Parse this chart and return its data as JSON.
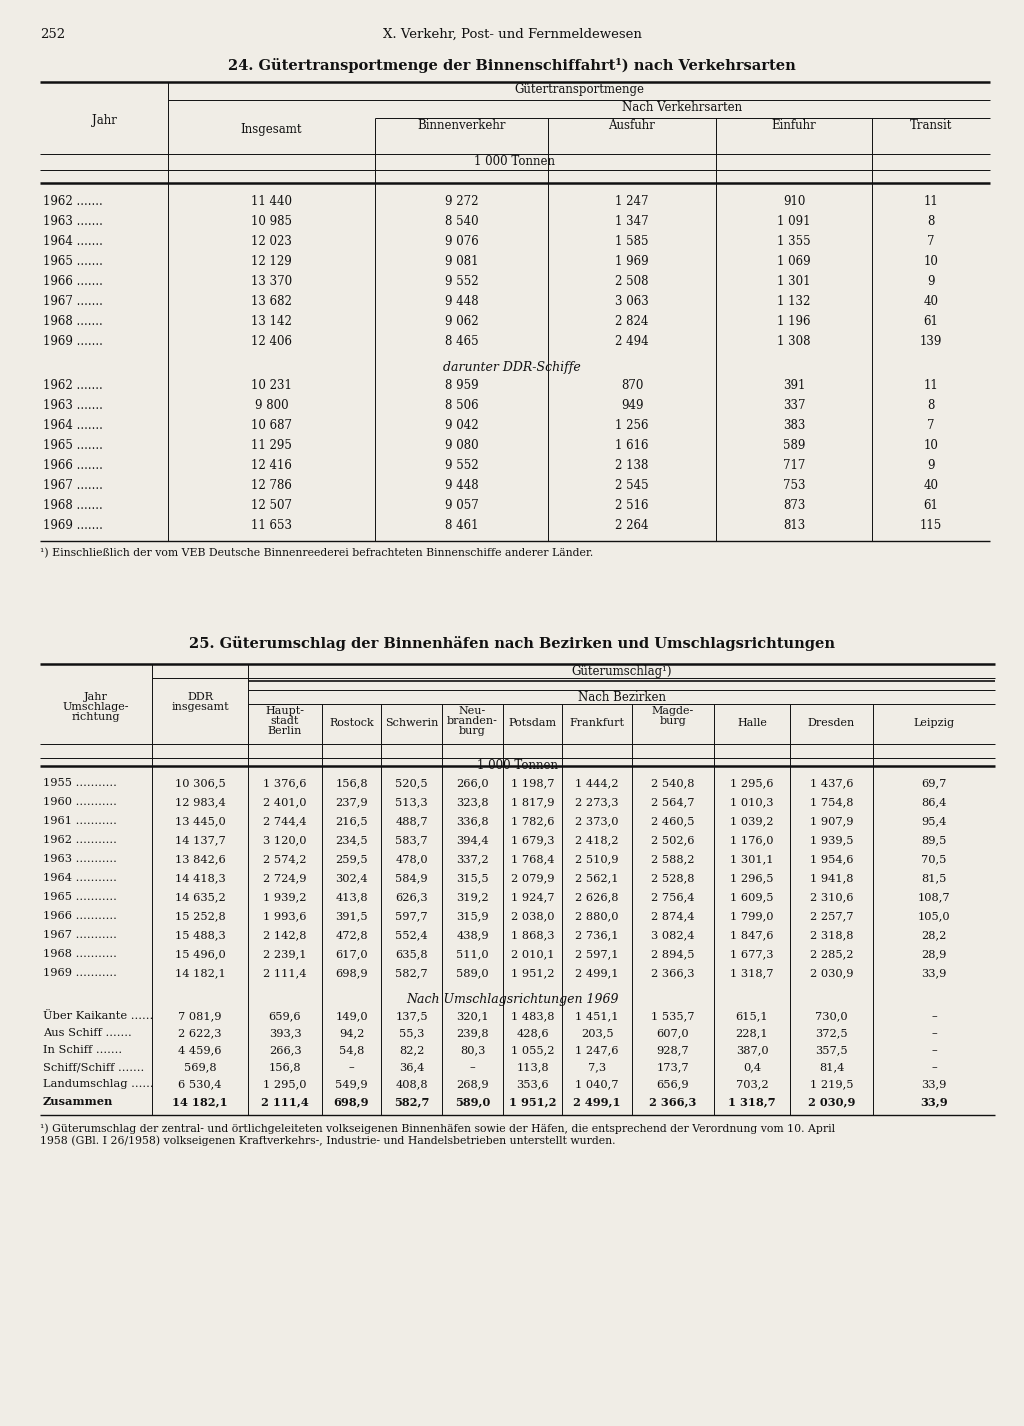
{
  "page_num": "252",
  "page_header": "X. Verkehr, Post- und Fernmeldewesen",
  "table1_title": "24. Gütertransportmenge der Binnenschiffahrt¹) nach Verkehrsarten",
  "table1_unit_row": "1 000 Tonnen",
  "table1_data": [
    [
      "1962 .......",
      "11 440",
      "9 272",
      "1 247",
      "910",
      "11"
    ],
    [
      "1963 .......",
      "10 985",
      "8 540",
      "1 347",
      "1 091",
      "8"
    ],
    [
      "1964 .......",
      "12 023",
      "9 076",
      "1 585",
      "1 355",
      "7"
    ],
    [
      "1965 .......",
      "12 129",
      "9 081",
      "1 969",
      "1 069",
      "10"
    ],
    [
      "1966 .......",
      "13 370",
      "9 552",
      "2 508",
      "1 301",
      "9"
    ],
    [
      "1967 .......",
      "13 682",
      "9 448",
      "3 063",
      "1 132",
      "40"
    ],
    [
      "1968 .......",
      "13 142",
      "9 062",
      "2 824",
      "1 196",
      "61"
    ],
    [
      "1969 .......",
      "12 406",
      "8 465",
      "2 494",
      "1 308",
      "139"
    ]
  ],
  "table1_section2_header": "darunter DDR-Schiffe",
  "table1_data2": [
    [
      "1962 .......",
      "10 231",
      "8 959",
      "870",
      "391",
      "11"
    ],
    [
      "1963 .......",
      "9 800",
      "8 506",
      "949",
      "337",
      "8"
    ],
    [
      "1964 .......",
      "10 687",
      "9 042",
      "1 256",
      "383",
      "7"
    ],
    [
      "1965 .......",
      "11 295",
      "9 080",
      "1 616",
      "589",
      "10"
    ],
    [
      "1966 .......",
      "12 416",
      "9 552",
      "2 138",
      "717",
      "9"
    ],
    [
      "1967 .......",
      "12 786",
      "9 448",
      "2 545",
      "753",
      "40"
    ],
    [
      "1968 .......",
      "12 507",
      "9 057",
      "2 516",
      "873",
      "61"
    ],
    [
      "1969 .......",
      "11 653",
      "8 461",
      "2 264",
      "813",
      "115"
    ]
  ],
  "table1_footnote": "¹) Einschließlich der vom VEB Deutsche Binnenreederei befrachteten Binnenschiffe anderer Länder.",
  "table2_title": "25. Güterumschlag der Binnenhäfen nach Bezirken und Umschlagsrichtungen",
  "table2_unit_row": "1 000 Tonnen",
  "table2_data": [
    [
      "1955 ...........",
      "10 306,5",
      "1 376,6",
      "156,8",
      "520,5",
      "266,0",
      "1 198,7",
      "1 444,2",
      "2 540,8",
      "1 295,6",
      "1 437,6",
      "69,7"
    ],
    [
      "1960 ...........",
      "12 983,4",
      "2 401,0",
      "237,9",
      "513,3",
      "323,8",
      "1 817,9",
      "2 273,3",
      "2 564,7",
      "1 010,3",
      "1 754,8",
      "86,4"
    ],
    [
      "1961 ...........",
      "13 445,0",
      "2 744,4",
      "216,5",
      "488,7",
      "336,8",
      "1 782,6",
      "2 373,0",
      "2 460,5",
      "1 039,2",
      "1 907,9",
      "95,4"
    ],
    [
      "1962 ...........",
      "14 137,7",
      "3 120,0",
      "234,5",
      "583,7",
      "394,4",
      "1 679,3",
      "2 418,2",
      "2 502,6",
      "1 176,0",
      "1 939,5",
      "89,5"
    ],
    [
      "1963 ...........",
      "13 842,6",
      "2 574,2",
      "259,5",
      "478,0",
      "337,2",
      "1 768,4",
      "2 510,9",
      "2 588,2",
      "1 301,1",
      "1 954,6",
      "70,5"
    ],
    [
      "1964 ...........",
      "14 418,3",
      "2 724,9",
      "302,4",
      "584,9",
      "315,5",
      "2 079,9",
      "2 562,1",
      "2 528,8",
      "1 296,5",
      "1 941,8",
      "81,5"
    ],
    [
      "1965 ...........",
      "14 635,2",
      "1 939,2",
      "413,8",
      "626,3",
      "319,2",
      "1 924,7",
      "2 626,8",
      "2 756,4",
      "1 609,5",
      "2 310,6",
      "108,7"
    ],
    [
      "1966 ...........",
      "15 252,8",
      "1 993,6",
      "391,5",
      "597,7",
      "315,9",
      "2 038,0",
      "2 880,0",
      "2 874,4",
      "1 799,0",
      "2 257,7",
      "105,0"
    ],
    [
      "1967 ...........",
      "15 488,3",
      "2 142,8",
      "472,8",
      "552,4",
      "438,9",
      "1 868,3",
      "2 736,1",
      "3 082,4",
      "1 847,6",
      "2 318,8",
      "28,2"
    ],
    [
      "1968 ...........",
      "15 496,0",
      "2 239,1",
      "617,0",
      "635,8",
      "511,0",
      "2 010,1",
      "2 597,1",
      "2 894,5",
      "1 677,3",
      "2 285,2",
      "28,9"
    ],
    [
      "1969 ...........",
      "14 182,1",
      "2 111,4",
      "698,9",
      "582,7",
      "589,0",
      "1 951,2",
      "2 499,1",
      "2 366,3",
      "1 318,7",
      "2 030,9",
      "33,9"
    ]
  ],
  "table2_section2_header": "Nach Umschlagsrichtungen 1969",
  "table2_data2": [
    [
      "Über Kaikante ......",
      "7 081,9",
      "659,6",
      "149,0",
      "137,5",
      "320,1",
      "1 483,8",
      "1 451,1",
      "1 535,7",
      "615,1",
      "730,0",
      "–"
    ],
    [
      "Aus Schiff .......",
      "2 622,3",
      "393,3",
      "94,2",
      "55,3",
      "239,8",
      "428,6",
      "203,5",
      "607,0",
      "228,1",
      "372,5",
      "–"
    ],
    [
      "In Schiff .......",
      "4 459,6",
      "266,3",
      "54,8",
      "82,2",
      "80,3",
      "1 055,2",
      "1 247,6",
      "928,7",
      "387,0",
      "357,5",
      "–"
    ],
    [
      "Schiff/Schiff .......",
      "569,8",
      "156,8",
      "–",
      "36,4",
      "–",
      "113,8",
      "7,3",
      "173,7",
      "0,4",
      "81,4",
      "–"
    ],
    [
      "Landumschlag ......",
      "6 530,4",
      "1 295,0",
      "549,9",
      "408,8",
      "268,9",
      "353,6",
      "1 040,7",
      "656,9",
      "703,2",
      "1 219,5",
      "33,9"
    ],
    [
      "Zusammen",
      "14 182,1",
      "2 111,4",
      "698,9",
      "582,7",
      "589,0",
      "1 951,2",
      "2 499,1",
      "2 366,3",
      "1 318,7",
      "2 030,9",
      "33,9"
    ]
  ],
  "table2_footnote_line1": "¹) Güterumschlag der zentral- und örtlichgeleiteten volkseigenen Binnenhäfen sowie der Häfen, die entsprechend der Verordnung vom 10. April",
  "table2_footnote_line2": "1958 (GBl. I 26/1958) volkseigenen Kraftverkehrs-, Industrie- und Handelsbetrieben unterstellt wurden.",
  "bg_color": "#f0ede6",
  "text_color": "#111111",
  "line_color": "#111111"
}
